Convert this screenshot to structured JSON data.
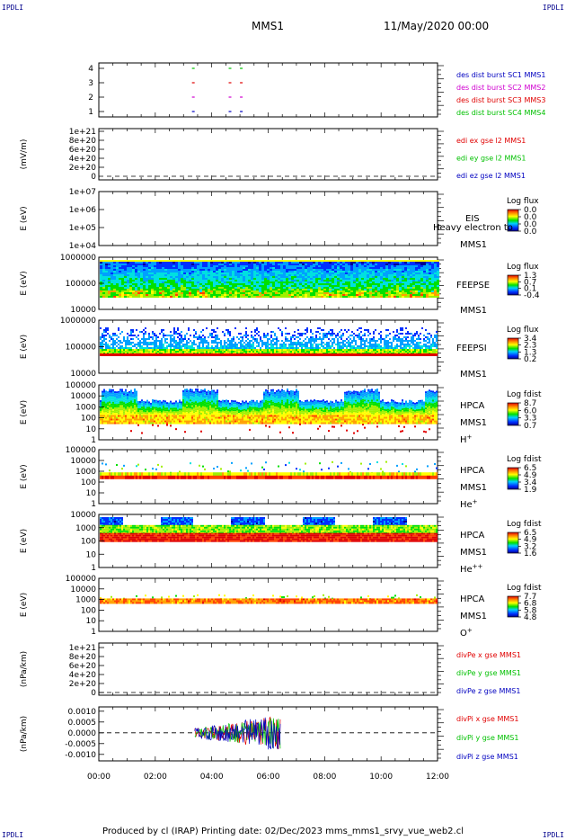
{
  "corners": {
    "tl": "IPDLI",
    "tr": "IPDLI",
    "bl": "IPDLI",
    "br": "IPDLI"
  },
  "header": {
    "title": "MMS1",
    "date": "11/May/2020 00:00"
  },
  "footer": "Produced by cl (IRAP)   Printing date: 02/Dec/2023   mms_mms1_srvy_vue_web2.cl",
  "colors": {
    "mms1": "#0000c0",
    "mms2": "#d000d0",
    "mms3": "#e00000",
    "mms4": "#00c000"
  },
  "chart_data": [
    {
      "type": "scatter",
      "title": "",
      "y_ticks": [
        "4",
        "3",
        "2",
        "1"
      ],
      "legend": [
        {
          "label": "des dist burst SC1 MMS1",
          "color": "#0000c0"
        },
        {
          "label": "des dist burst SC2 MMS2",
          "color": "#d000d0"
        },
        {
          "label": "des dist burst SC3 MMS3",
          "color": "#e00000"
        },
        {
          "label": "des dist burst SC4 MMS4",
          "color": "#00c000"
        }
      ],
      "series": [
        {
          "name": "SC1 MMS1",
          "level": 1,
          "x_hours": [
            3.3,
            4.6,
            5.0
          ]
        },
        {
          "name": "SC2 MMS2",
          "level": 2,
          "x_hours": [
            3.3,
            4.6,
            5.0
          ]
        },
        {
          "name": "SC3 MMS3",
          "level": 3,
          "x_hours": [
            3.3,
            4.6,
            5.0
          ]
        },
        {
          "name": "SC4 MMS4",
          "level": 4,
          "x_hours": [
            3.3,
            4.6,
            5.0
          ]
        }
      ]
    },
    {
      "type": "line",
      "ylabel": "(mV/m)",
      "y_ticks": [
        "1e+21",
        "8e+20",
        "6e+20",
        "4e+20",
        "2e+20",
        "0"
      ],
      "legend": [
        {
          "label": "edi ex gse l2 MMS1",
          "color": "#e00000"
        },
        {
          "label": "edi ey gse l2 MMS1",
          "color": "#00c000"
        },
        {
          "label": "edi ez gse l2 MMS1",
          "color": "#0000c0"
        }
      ]
    },
    {
      "type": "heatmap",
      "ylabel": "E (eV)",
      "y_ticks": [
        "1e+07",
        "1e+06",
        "1e+05",
        "1e+04"
      ],
      "side_labels": [
        "EIS",
        "MMS1"
      ],
      "overlay_text": "Heavy electron to",
      "colorbar_title": "Log flux",
      "colorbar_ticks": [
        "0.0",
        "0.0",
        "0.0",
        "0.0"
      ]
    },
    {
      "type": "heatmap",
      "ylabel": "E (eV)",
      "y_ticks": [
        "1000000",
        "100000",
        "10000"
      ],
      "side_labels": [
        "FEEPSE",
        "MMS1"
      ],
      "colorbar_title": "Log flux",
      "colorbar_ticks": [
        "1.3",
        "0.7",
        "0.1",
        "-0.4"
      ]
    },
    {
      "type": "heatmap",
      "ylabel": "E (eV)",
      "y_ticks": [
        "1000000",
        "100000",
        "10000"
      ],
      "side_labels": [
        "FEEPSI",
        "MMS1"
      ],
      "colorbar_title": "Log flux",
      "colorbar_ticks": [
        "3.4",
        "2.3",
        "1.3",
        "0.2"
      ]
    },
    {
      "type": "heatmap",
      "ylabel": "E (eV)",
      "y_ticks": [
        "100000",
        "10000",
        "1000",
        "100",
        "10",
        "1"
      ],
      "side_labels": [
        "HPCA",
        "MMS1",
        "H+"
      ],
      "colorbar_title": "Log fdist",
      "colorbar_ticks": [
        "8.7",
        "6.0",
        "3.3",
        "0.7"
      ]
    },
    {
      "type": "heatmap",
      "ylabel": "E (eV)",
      "y_ticks": [
        "100000",
        "10000",
        "1000",
        "100",
        "10",
        "1"
      ],
      "side_labels": [
        "HPCA",
        "MMS1",
        "He+"
      ],
      "colorbar_title": "Log fdist",
      "colorbar_ticks": [
        "6.5",
        "4.9",
        "3.4",
        "1.9"
      ]
    },
    {
      "type": "heatmap",
      "ylabel": "E (eV)",
      "y_ticks": [
        "10000",
        "1000",
        "100",
        "10",
        "1"
      ],
      "side_labels": [
        "HPCA",
        "MMS1",
        "He++"
      ],
      "colorbar_title": "Log fdist",
      "colorbar_ticks": [
        "6.5",
        "4.9",
        "3.2",
        "1.6"
      ]
    },
    {
      "type": "heatmap",
      "ylabel": "E (eV)",
      "y_ticks": [
        "100000",
        "10000",
        "1000",
        "100",
        "10",
        "1"
      ],
      "side_labels": [
        "HPCA",
        "MMS1",
        "O+"
      ],
      "colorbar_title": "Log fdist",
      "colorbar_ticks": [
        "7.7",
        "6.8",
        "5.8",
        "4.8"
      ]
    },
    {
      "type": "line",
      "ylabel": "(nPa/km)",
      "y_ticks": [
        "1e+21",
        "8e+20",
        "6e+20",
        "4e+20",
        "2e+20",
        "0"
      ],
      "legend": [
        {
          "label": "divPe x gse MMS1",
          "color": "#e00000"
        },
        {
          "label": "divPe y gse MMS1",
          "color": "#00c000"
        },
        {
          "label": "divPe z gse MMS1",
          "color": "#0000c0"
        }
      ]
    },
    {
      "type": "line",
      "ylabel": "(nPa/km)",
      "y_ticks": [
        "0.0010",
        "0.0005",
        "0.0000",
        "-0.0005",
        "-0.0010"
      ],
      "ylim": [
        -0.0013,
        0.0012
      ],
      "data_span_hours": [
        3.4,
        6.45
      ],
      "legend": [
        {
          "label": "divPi x gse MMS1",
          "color": "#e00000"
        },
        {
          "label": "divPi y gse MMS1",
          "color": "#00c000"
        },
        {
          "label": "divPi z gse MMS1",
          "color": "#0000c0"
        }
      ]
    }
  ],
  "x_axis": {
    "ticks": [
      "00:00",
      "02:00",
      "04:00",
      "06:00",
      "08:00",
      "10:00",
      "12:00"
    ],
    "range_hours": [
      0,
      12
    ]
  }
}
